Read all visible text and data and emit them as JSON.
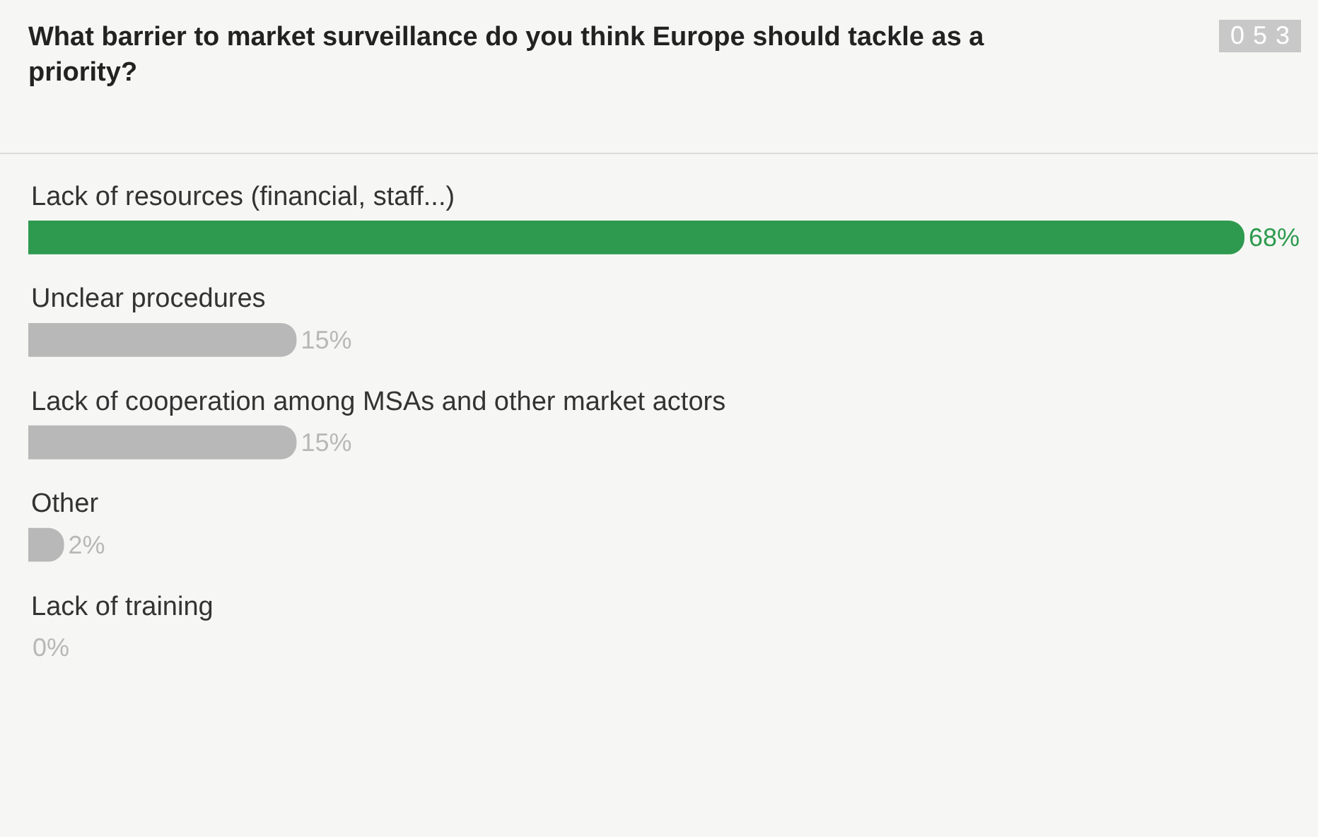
{
  "chart_data": {
    "type": "bar",
    "orientation": "horizontal",
    "title": "What barrier to market surveillance do you think Europe should tackle as a priority?",
    "categories": [
      "Lack of resources (financial, staff...)",
      "Unclear procedures",
      "Lack of cooperation among MSAs and other market actors",
      "Other",
      "Lack of training"
    ],
    "values": [
      68,
      15,
      15,
      2,
      0
    ],
    "value_labels": [
      "68%",
      "15%",
      "15%",
      "2%",
      "0%"
    ],
    "colors": [
      "#2e9a4f",
      "#b8b8b8",
      "#b8b8b8",
      "#b8b8b8",
      "#b8b8b8"
    ],
    "xlim": [
      0,
      68
    ],
    "tick_labels": false,
    "annotations": [
      "053"
    ]
  }
}
